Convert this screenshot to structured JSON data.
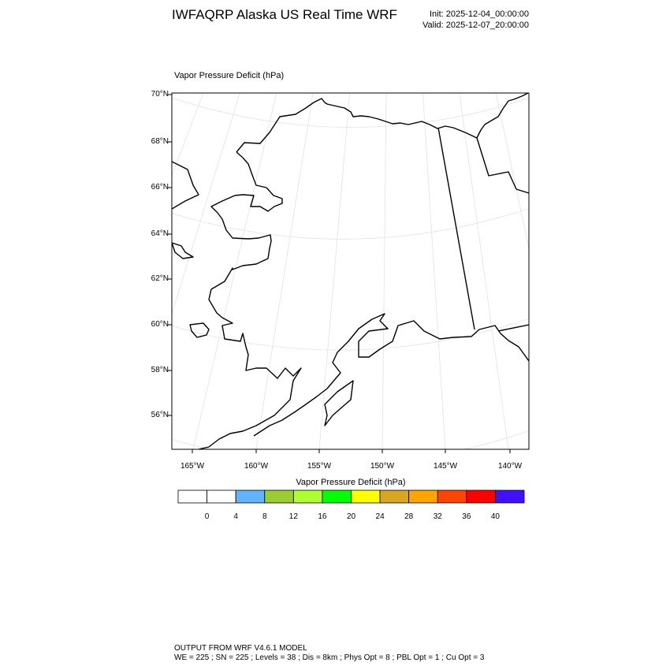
{
  "header": {
    "title": "IWFAQRP Alaska US Real Time WRF",
    "init": "Init: 2025-12-04_00:00:00",
    "valid": "Valid: 2025-12-07_20:00:00"
  },
  "map": {
    "field_label": "Vapor Pressure Deficit   (hPa)",
    "lat_labels": [
      "70°N",
      "68°N",
      "66°N",
      "64°N",
      "62°N",
      "60°N",
      "58°N",
      "56°N"
    ],
    "lon_labels": [
      "165°W",
      "160°W",
      "155°W",
      "150°W",
      "145°W",
      "140°W"
    ],
    "field_values": "no shading visible (all below 4 hPa)"
  },
  "colorbar": {
    "title": "Vapor Pressure Deficit  (hPa)",
    "labels": [
      "0",
      "4",
      "8",
      "12",
      "16",
      "20",
      "24",
      "28",
      "32",
      "36",
      "40"
    ],
    "colors": [
      "#ffffff",
      "#ffffff",
      "#63b4ff",
      "#9acd32",
      "#adff2f",
      "#00ff00",
      "#ffff00",
      "#daa520",
      "#ffa500",
      "#ff4500",
      "#ff0000",
      "#4010ff"
    ]
  },
  "footer": {
    "line1": "OUTPUT FROM WRF V4.6.1 MODEL",
    "line2": "WE = 225 ; SN = 225 ; Levels = 38 ; Dis = 8km ; Phys Opt = 8 ; PBL Opt = 1 ; Cu Opt = 3"
  }
}
